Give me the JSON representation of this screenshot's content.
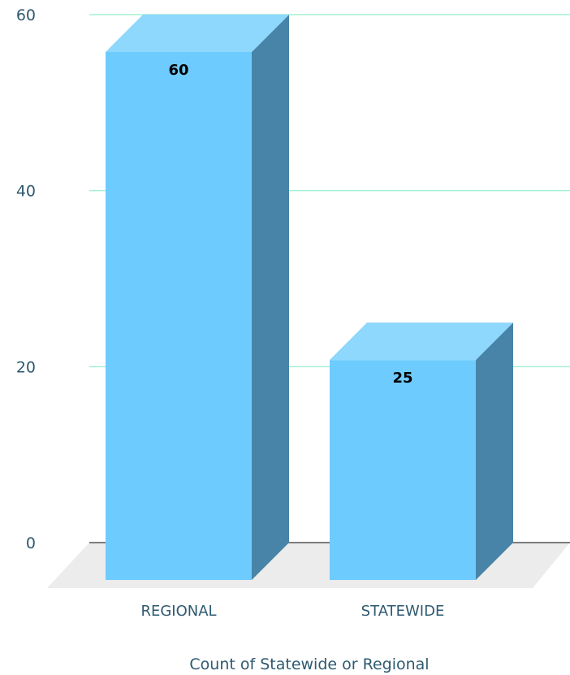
{
  "chart_data": {
    "type": "bar",
    "categories": [
      "REGIONAL",
      "STATEWIDE"
    ],
    "values": [
      60,
      25
    ],
    "data_labels": [
      "60",
      "25"
    ],
    "xlabel": "Count of  Statewide or Regional",
    "ylabel": "",
    "ylim": [
      0,
      60
    ],
    "yticks": [
      "0",
      "20",
      "40",
      "60"
    ],
    "grid": true,
    "style": "3d",
    "colors": {
      "bar_front": "#6ecbfd",
      "bar_top": "#8ed7fd",
      "bar_side": "#4884a7",
      "grid": "#a4f0d4",
      "floor": "#ececec",
      "baseline": "#555555",
      "text": "#2e5a70"
    }
  }
}
